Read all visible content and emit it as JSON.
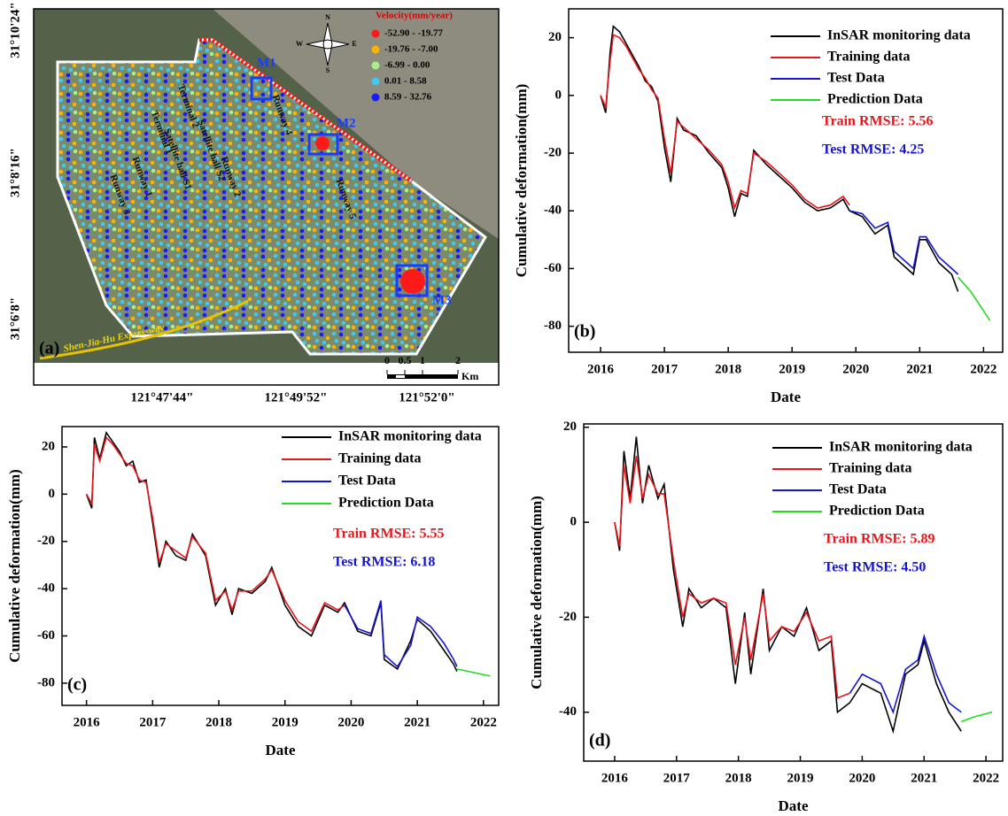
{
  "chart_data": [
    {
      "type": "map",
      "panel_label": "(a)",
      "legend_title": "Velocity(mm/year)",
      "legend": [
        {
          "label": "-52.90 - -19.77",
          "color": "#ff1a1a"
        },
        {
          "label": "-19.76 - -7.00",
          "color": "#ffb300"
        },
        {
          "label": "-6.99 - 0.00",
          "color": "#a8f08a"
        },
        {
          "label": "0.01 - 8.58",
          "color": "#3fc8f0"
        },
        {
          "label": "8.59 - 32.76",
          "color": "#1a1aff"
        }
      ],
      "boxes": [
        "M1",
        "M2",
        "M3"
      ],
      "places": [
        "Runway 3",
        "Runway 1",
        "Terminal 1",
        "Satellite hall S1",
        "Terminal 2",
        "Satellite hall S2",
        "Runway 2",
        "Runway 4",
        "Runway 5"
      ],
      "road": "Shen-Jia-Hu Expressway",
      "compass": [
        "N",
        "S",
        "W",
        "E"
      ],
      "scale": [
        0,
        0.5,
        1,
        2
      ],
      "scale_unit": "Km",
      "lat_labels": [
        "31°10'24\"",
        "31°8'16\"",
        "31°6'8\""
      ],
      "lon_labels": [
        "121°47'44\"",
        "121°49'52\"",
        "121°52'0\""
      ]
    },
    {
      "type": "line",
      "panel_label": "(b)",
      "x_label": "Date",
      "y_label": "Cumulative deformation(mm)",
      "xlim": [
        2015.5,
        2022.3
      ],
      "xticks": [
        2016,
        2017,
        2018,
        2019,
        2020,
        2021,
        2022
      ],
      "ylim": [
        -89,
        30
      ],
      "yticks": [
        20,
        0,
        -20,
        -40,
        -60,
        -80
      ],
      "legend_position": "upper right",
      "series": [
        {
          "name": "InSAR monitoring data",
          "color": "#000000",
          "x": [
            2016.0,
            2016.08,
            2016.15,
            2016.2,
            2016.3,
            2016.4,
            2016.5,
            2016.6,
            2016.7,
            2016.8,
            2016.9,
            2017.0,
            2017.1,
            2017.2,
            2017.3,
            2017.5,
            2017.7,
            2017.9,
            2018.0,
            2018.1,
            2018.2,
            2018.3,
            2018.4,
            2018.6,
            2018.8,
            2019.0,
            2019.2,
            2019.4,
            2019.6,
            2019.8,
            2019.9,
            2020.1,
            2020.3,
            2020.5,
            2020.6,
            2020.8,
            2020.9,
            2021.0,
            2021.1,
            2021.3,
            2021.5,
            2021.6
          ],
          "values": [
            0,
            -6,
            15,
            24,
            22,
            18,
            14,
            10,
            5,
            3,
            -2,
            -18,
            -30,
            -8,
            -12,
            -14,
            -20,
            -25,
            -32,
            -42,
            -34,
            -35,
            -19,
            -24,
            -28,
            -32,
            -37,
            -40,
            -39,
            -36,
            -40,
            -42,
            -48,
            -45,
            -56,
            -60,
            -62,
            -50,
            -50,
            -58,
            -62,
            -68
          ]
        },
        {
          "name": "Training data",
          "color": "#e8151b",
          "x": [
            2016.0,
            2016.08,
            2016.15,
            2016.2,
            2016.3,
            2016.4,
            2016.5,
            2016.6,
            2016.7,
            2016.8,
            2016.9,
            2017.0,
            2017.1,
            2017.2,
            2017.3,
            2017.5,
            2017.7,
            2017.9,
            2018.0,
            2018.1,
            2018.2,
            2018.3,
            2018.4,
            2018.6,
            2018.8,
            2019.0,
            2019.2,
            2019.4,
            2019.6,
            2019.8,
            2019.9
          ],
          "values": [
            0,
            -4,
            12,
            21,
            20,
            17,
            13,
            9,
            6,
            2,
            -1,
            -15,
            -27,
            -9,
            -11,
            -15,
            -19,
            -24,
            -30,
            -39,
            -33,
            -34,
            -20,
            -23,
            -27,
            -31,
            -36,
            -39,
            -38,
            -35,
            -38
          ]
        },
        {
          "name": "Test Data",
          "color": "#1515d0",
          "x": [
            2019.9,
            2020.1,
            2020.3,
            2020.5,
            2020.6,
            2020.8,
            2020.9,
            2021.0,
            2021.1,
            2021.3,
            2021.5,
            2021.6
          ],
          "values": [
            -40,
            -41,
            -46,
            -44,
            -54,
            -58,
            -60,
            -49,
            -49,
            -56,
            -60,
            -62
          ]
        },
        {
          "name": "Prediction Data",
          "color": "#22dd22",
          "x": [
            2021.6,
            2021.8,
            2022.1
          ],
          "values": [
            -63,
            -68,
            -78
          ]
        }
      ],
      "annotations": [
        {
          "text": "Train RMSE: 5.56",
          "color": "#e8151b"
        },
        {
          "text": "Test RMSE: 4.25",
          "color": "#1515d0"
        }
      ]
    },
    {
      "type": "line",
      "panel_label": "(c)",
      "x_label": "Date",
      "y_label": "Cumulative deformation(mm)",
      "xlim": [
        2015.63,
        2022.23
      ],
      "xticks": [
        2016,
        2017,
        2018,
        2019,
        2020,
        2021,
        2022
      ],
      "ylim": [
        -89.4,
        28.6
      ],
      "yticks": [
        20,
        0,
        -20,
        -40,
        -60,
        -80
      ],
      "legend_position": "upper right",
      "series": [
        {
          "name": "InSAR monitoring data",
          "color": "#000000",
          "x": [
            2016.0,
            2016.08,
            2016.12,
            2016.2,
            2016.3,
            2016.4,
            2016.5,
            2016.6,
            2016.7,
            2016.8,
            2016.9,
            2017.0,
            2017.1,
            2017.2,
            2017.35,
            2017.5,
            2017.6,
            2017.8,
            2017.95,
            2018.1,
            2018.2,
            2018.3,
            2018.5,
            2018.7,
            2018.8,
            2019.0,
            2019.2,
            2019.4,
            2019.6,
            2019.8,
            2019.9,
            2020.1,
            2020.3,
            2020.45,
            2020.5,
            2020.7,
            2020.9,
            2021.0,
            2021.2,
            2021.4,
            2021.55,
            2021.6
          ],
          "values": [
            0,
            -6,
            24,
            15,
            26,
            22,
            18,
            12,
            14,
            5,
            6,
            -12,
            -31,
            -20,
            -26,
            -28,
            -17,
            -26,
            -47,
            -40,
            -51,
            -40,
            -42,
            -37,
            -31,
            -47,
            -56,
            -60,
            -47,
            -50,
            -46,
            -58,
            -60,
            -46,
            -70,
            -74,
            -62,
            -53,
            -58,
            -66,
            -72,
            -75
          ]
        },
        {
          "name": "Training data",
          "color": "#e8151b",
          "x": [
            2016.0,
            2016.08,
            2016.12,
            2016.2,
            2016.3,
            2016.4,
            2016.5,
            2016.6,
            2016.7,
            2016.8,
            2016.9,
            2017.0,
            2017.1,
            2017.2,
            2017.35,
            2017.5,
            2017.6,
            2017.8,
            2017.95,
            2018.1,
            2018.2,
            2018.3,
            2018.5,
            2018.7,
            2018.8,
            2019.0,
            2019.2,
            2019.4,
            2019.6,
            2019.8,
            2019.9
          ],
          "values": [
            0,
            -4,
            21,
            14,
            24,
            21,
            17,
            13,
            12,
            6,
            5,
            -10,
            -29,
            -21,
            -24,
            -27,
            -18,
            -25,
            -45,
            -41,
            -49,
            -41,
            -41,
            -36,
            -32,
            -45,
            -54,
            -58,
            -46,
            -49,
            -47
          ]
        },
        {
          "name": "Test Data",
          "color": "#1515d0",
          "x": [
            2019.9,
            2020.1,
            2020.3,
            2020.45,
            2020.5,
            2020.7,
            2020.9,
            2021.0,
            2021.2,
            2021.4,
            2021.55,
            2021.6
          ],
          "values": [
            -47,
            -57,
            -59,
            -45,
            -68,
            -73,
            -64,
            -52,
            -56,
            -63,
            -70,
            -73
          ]
        },
        {
          "name": "Prediction Data",
          "color": "#22dd22",
          "x": [
            2021.6,
            2022.1
          ],
          "values": [
            -74,
            -77
          ]
        }
      ],
      "annotations": [
        {
          "text": "Train RMSE: 5.55",
          "color": "#e8151b"
        },
        {
          "text": "Test RMSE: 6.18",
          "color": "#1515d0"
        }
      ]
    },
    {
      "type": "line",
      "panel_label": "(d)",
      "x_label": "Date",
      "y_label": "Cumulative deformation(mm)",
      "xlim": [
        2015.5,
        2022.27
      ],
      "xticks": [
        2016,
        2017,
        2018,
        2019,
        2020,
        2021,
        2022
      ],
      "ylim": [
        -50.3,
        20.7
      ],
      "yticks": [
        20,
        0,
        -20,
        -40
      ],
      "legend_position": "upper right",
      "series": [
        {
          "name": "InSAR monitoring data",
          "color": "#000000",
          "x": [
            2016.0,
            2016.08,
            2016.15,
            2016.25,
            2016.35,
            2016.45,
            2016.55,
            2016.7,
            2016.8,
            2016.95,
            2017.1,
            2017.2,
            2017.4,
            2017.6,
            2017.8,
            2017.95,
            2018.1,
            2018.2,
            2018.4,
            2018.5,
            2018.7,
            2018.9,
            2019.1,
            2019.3,
            2019.5,
            2019.6,
            2019.8,
            2020.0,
            2020.3,
            2020.5,
            2020.7,
            2020.9,
            2021.0,
            2021.2,
            2021.4,
            2021.6
          ],
          "values": [
            0,
            -6,
            15,
            5,
            18,
            4,
            12,
            5,
            8,
            -10,
            -22,
            -14,
            -18,
            -16,
            -18,
            -34,
            -19,
            -32,
            -14,
            -27,
            -22,
            -24,
            -18,
            -27,
            -25,
            -40,
            -38,
            -34,
            -36,
            -44,
            -32,
            -30,
            -25,
            -34,
            -40,
            -44
          ]
        },
        {
          "name": "Training data",
          "color": "#e8151b",
          "x": [
            2016.0,
            2016.08,
            2016.15,
            2016.25,
            2016.35,
            2016.45,
            2016.55,
            2016.7,
            2016.8,
            2016.95,
            2017.1,
            2017.2,
            2017.4,
            2017.6,
            2017.8,
            2017.95,
            2018.1,
            2018.2,
            2018.4,
            2018.5,
            2018.7,
            2018.9,
            2019.1,
            2019.3,
            2019.5,
            2019.6,
            2019.8
          ],
          "values": [
            0,
            -5,
            12,
            4,
            14,
            5,
            10,
            6,
            6,
            -8,
            -20,
            -15,
            -17,
            -16,
            -17,
            -30,
            -20,
            -29,
            -15,
            -25,
            -22,
            -23,
            -19,
            -25,
            -24,
            -37,
            -36
          ]
        },
        {
          "name": "Test Data",
          "color": "#1515d0",
          "x": [
            2019.8,
            2020.0,
            2020.3,
            2020.5,
            2020.7,
            2020.9,
            2021.0,
            2021.2,
            2021.4,
            2021.6
          ],
          "values": [
            -36,
            -32,
            -34,
            -40,
            -31,
            -29,
            -24,
            -32,
            -38,
            -40
          ]
        },
        {
          "name": "Prediction Data",
          "color": "#22dd22",
          "x": [
            2021.6,
            2021.8,
            2022.1
          ],
          "values": [
            -42,
            -41,
            -40
          ]
        }
      ],
      "annotations": [
        {
          "text": "Train RMSE: 5.89",
          "color": "#e8151b"
        },
        {
          "text": "Test RMSE: 4.50",
          "color": "#1515d0"
        }
      ]
    }
  ]
}
